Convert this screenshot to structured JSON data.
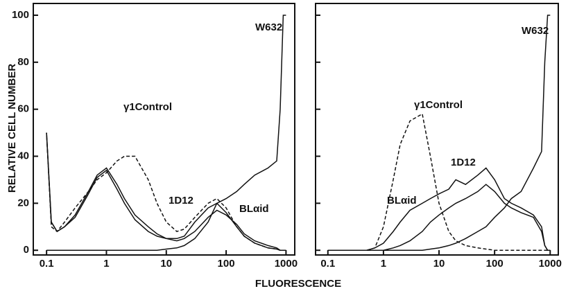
{
  "xlabel": "FLUORESCENCE",
  "chart_data": [
    {
      "type": "line",
      "ylabel": "RELATIVE CELL NUMBER",
      "xscale": "log",
      "x": [
        0.1,
        0.12,
        0.15,
        0.2,
        0.3,
        0.5,
        0.7,
        1,
        1.5,
        2,
        3,
        5,
        7,
        10,
        15,
        20,
        30,
        50,
        70,
        100,
        150,
        200,
        300,
        500,
        700,
        800,
        900,
        950,
        1000
      ],
      "xlim": [
        0.06,
        1400
      ],
      "ylim": [
        -2,
        105
      ],
      "xticks": [
        0.1,
        1,
        10,
        100,
        1000
      ],
      "yticks": [
        0,
        20,
        40,
        60,
        80,
        100
      ],
      "series": [
        {
          "name": "γ1Control",
          "color": "#111111",
          "dashed": true,
          "values": [
            50,
            10,
            8,
            12,
            18,
            25,
            30,
            33,
            38,
            40,
            40,
            30,
            20,
            12,
            8,
            9,
            14,
            20,
            22,
            18,
            10,
            6,
            3,
            1,
            0.5,
            0,
            0,
            0,
            0
          ]
        },
        {
          "name": "1D12",
          "color": "#111111",
          "dashed": false,
          "values": [
            50,
            12,
            8,
            10,
            15,
            25,
            32,
            35,
            28,
            22,
            15,
            10,
            7,
            5,
            5,
            6,
            12,
            18,
            20,
            16,
            10,
            6,
            3,
            1,
            0.5,
            0,
            0,
            0,
            0
          ]
        },
        {
          "name": "BLαid",
          "color": "#111111",
          "dashed": false,
          "values": [
            50,
            12,
            8,
            10,
            14,
            24,
            31,
            34,
            26,
            20,
            13,
            8,
            6,
            5,
            4,
            5,
            8,
            14,
            17,
            15,
            11,
            7,
            4,
            2,
            1,
            0,
            0,
            0,
            0
          ]
        },
        {
          "name": "W632",
          "color": "#111111",
          "dashed": false,
          "values": [
            0,
            0,
            0,
            0,
            0,
            0,
            0,
            0,
            0,
            0,
            0,
            0,
            0,
            0.5,
            1,
            2,
            5,
            12,
            20,
            22,
            25,
            28,
            32,
            35,
            38,
            60,
            100,
            100,
            100
          ]
        }
      ]
    },
    {
      "type": "line",
      "xscale": "log",
      "x": [
        0.1,
        0.12,
        0.15,
        0.2,
        0.3,
        0.5,
        0.7,
        1,
        1.5,
        2,
        3,
        5,
        7,
        10,
        15,
        20,
        30,
        50,
        70,
        100,
        150,
        200,
        300,
        500,
        700,
        800,
        900,
        950,
        1000
      ],
      "xlim": [
        0.06,
        1400
      ],
      "ylim": [
        -2,
        105
      ],
      "xticks": [
        0.1,
        1,
        10,
        100,
        1000
      ],
      "series": [
        {
          "name": "γ1Control",
          "color": "#111111",
          "dashed": true,
          "values": [
            0,
            0,
            0,
            0,
            0,
            0,
            1,
            10,
            30,
            45,
            55,
            58,
            40,
            20,
            8,
            4,
            2,
            1,
            0.5,
            0,
            0,
            0,
            0,
            0,
            0,
            0,
            0,
            0,
            0
          ]
        },
        {
          "name": "1D12",
          "color": "#111111",
          "dashed": false,
          "values": [
            0,
            0,
            0,
            0,
            0,
            0,
            1,
            3,
            8,
            12,
            17,
            20,
            22,
            24,
            26,
            30,
            28,
            32,
            35,
            30,
            22,
            20,
            18,
            15,
            10,
            2,
            0,
            0,
            0
          ]
        },
        {
          "name": "BLαid",
          "color": "#111111",
          "dashed": false,
          "values": [
            0,
            0,
            0,
            0,
            0,
            0,
            0,
            0,
            1,
            2,
            4,
            8,
            12,
            15,
            18,
            20,
            22,
            25,
            28,
            25,
            20,
            18,
            16,
            14,
            8,
            2,
            0,
            0,
            0
          ]
        },
        {
          "name": "W632",
          "color": "#111111",
          "dashed": false,
          "values": [
            0,
            0,
            0,
            0,
            0,
            0,
            0,
            0,
            0,
            0,
            0,
            0,
            0.5,
            1,
            2,
            3,
            5,
            8,
            10,
            14,
            18,
            22,
            25,
            35,
            42,
            80,
            100,
            100,
            100
          ]
        }
      ]
    }
  ]
}
